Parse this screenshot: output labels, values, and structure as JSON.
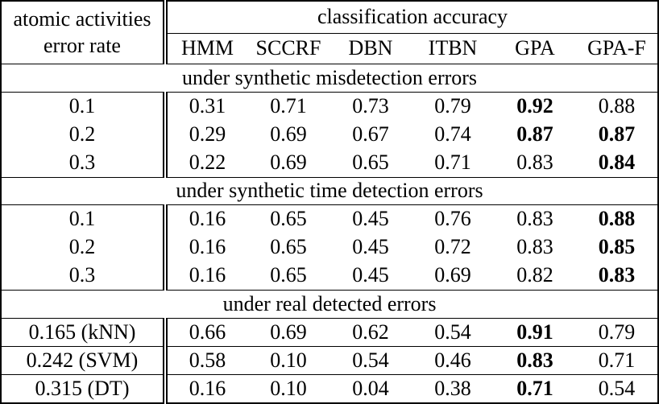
{
  "table": {
    "corner_header": {
      "line1": "atomic activities",
      "line2": "error rate"
    },
    "span_header": "classification accuracy",
    "columns": [
      "HMM",
      "SCCRF",
      "DBN",
      "ITBN",
      "GPA",
      "GPA-F"
    ],
    "sections": [
      {
        "title": "under synthetic misdetection errors",
        "rows": [
          {
            "label": "0.1",
            "values": [
              "0.31",
              "0.71",
              "0.73",
              "0.79",
              "0.92",
              "0.88"
            ],
            "bold": [
              false,
              false,
              false,
              false,
              true,
              false
            ]
          },
          {
            "label": "0.2",
            "values": [
              "0.29",
              "0.69",
              "0.67",
              "0.74",
              "0.87",
              "0.87"
            ],
            "bold": [
              false,
              false,
              false,
              false,
              true,
              true
            ]
          },
          {
            "label": "0.3",
            "values": [
              "0.22",
              "0.69",
              "0.65",
              "0.71",
              "0.83",
              "0.84"
            ],
            "bold": [
              false,
              false,
              false,
              false,
              false,
              true
            ]
          }
        ]
      },
      {
        "title": "under synthetic time detection errors",
        "rows": [
          {
            "label": "0.1",
            "values": [
              "0.16",
              "0.65",
              "0.45",
              "0.76",
              "0.83",
              "0.88"
            ],
            "bold": [
              false,
              false,
              false,
              false,
              false,
              true
            ]
          },
          {
            "label": "0.2",
            "values": [
              "0.16",
              "0.65",
              "0.45",
              "0.72",
              "0.83",
              "0.85"
            ],
            "bold": [
              false,
              false,
              false,
              false,
              false,
              true
            ]
          },
          {
            "label": "0.3",
            "values": [
              "0.16",
              "0.65",
              "0.45",
              "0.69",
              "0.82",
              "0.83"
            ],
            "bold": [
              false,
              false,
              false,
              false,
              false,
              true
            ]
          }
        ]
      },
      {
        "title": "under real detected errors",
        "rows": [
          {
            "label": "0.165 (kNN)",
            "values": [
              "0.66",
              "0.69",
              "0.62",
              "0.54",
              "0.91",
              "0.79"
            ],
            "bold": [
              false,
              false,
              false,
              false,
              true,
              false
            ]
          },
          {
            "label": "0.242 (SVM)",
            "values": [
              "0.58",
              "0.10",
              "0.54",
              "0.46",
              "0.83",
              "0.71"
            ],
            "bold": [
              false,
              false,
              false,
              false,
              true,
              false
            ]
          },
          {
            "label": "0.315 (DT)",
            "values": [
              "0.16",
              "0.10",
              "0.04",
              "0.38",
              "0.71",
              "0.54"
            ],
            "bold": [
              false,
              false,
              false,
              false,
              true,
              false
            ]
          }
        ]
      }
    ]
  }
}
